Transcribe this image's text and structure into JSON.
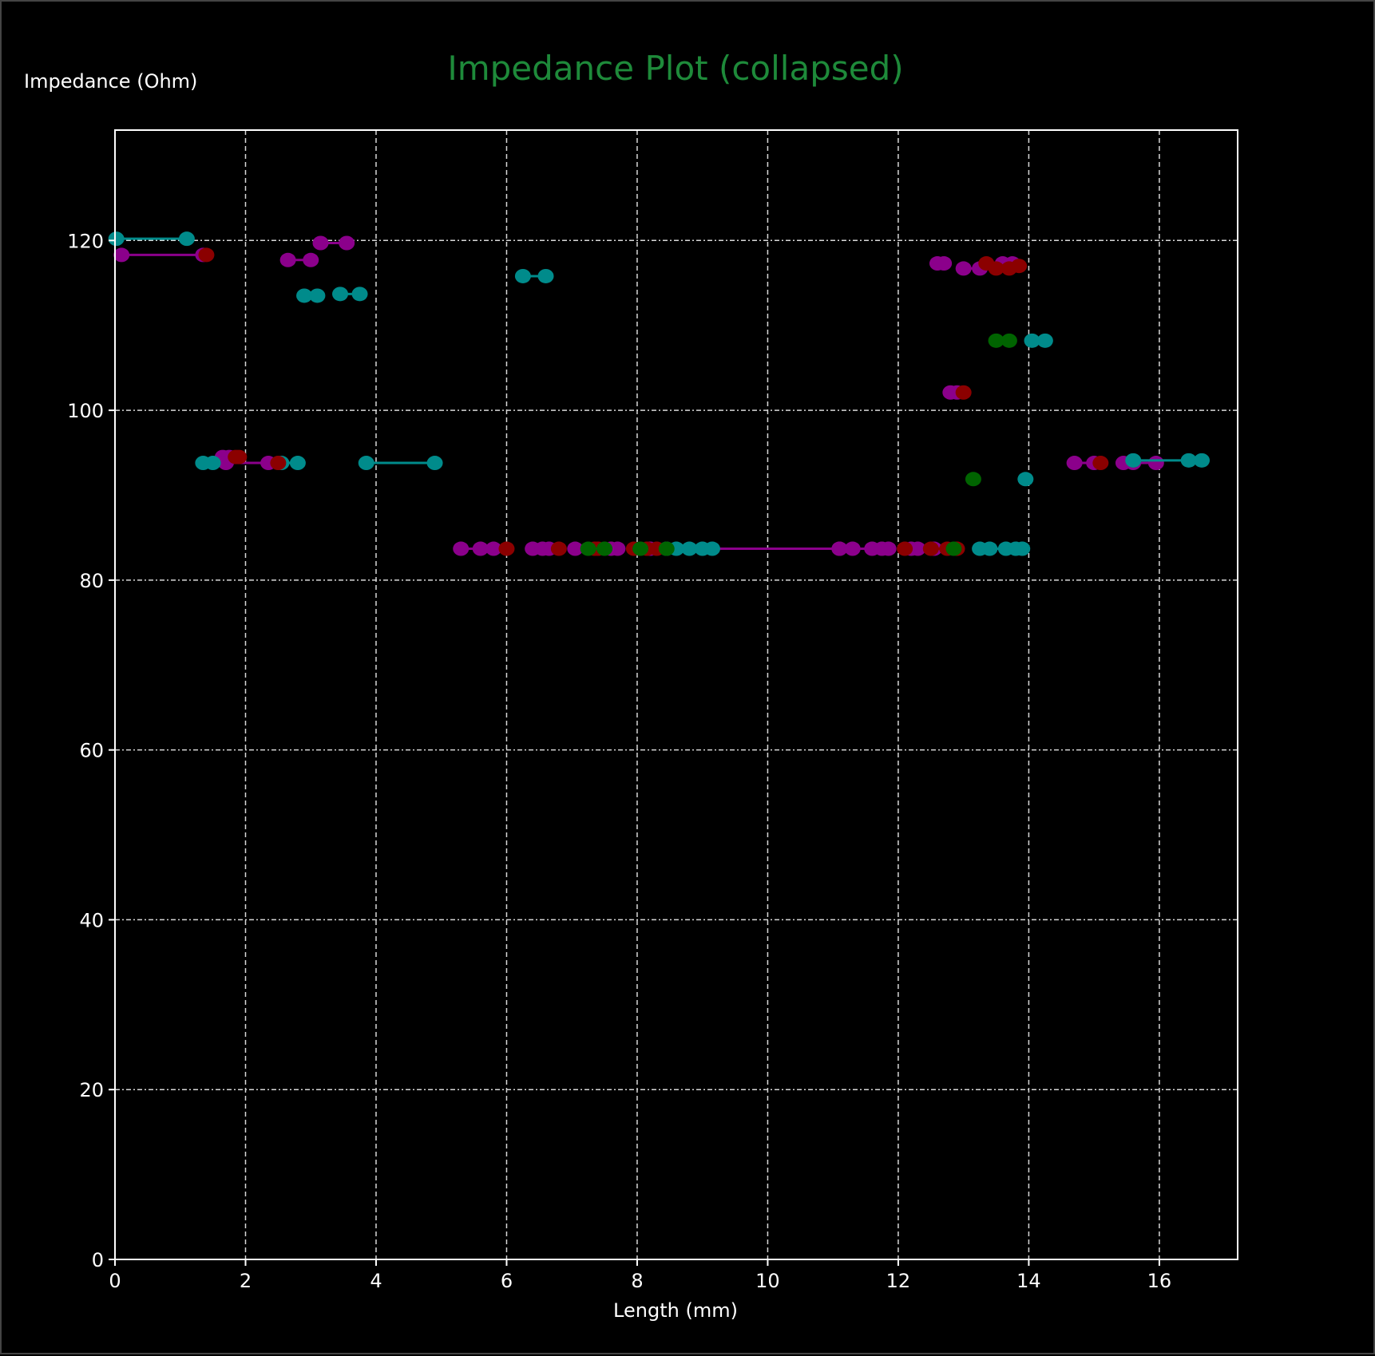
{
  "chart_data": {
    "type": "scatter",
    "title": "Impedance Plot (collapsed)",
    "xlabel": "Length (mm)",
    "ylabel": "Impedance (Ohm)",
    "xlim": [
      0,
      17.2
    ],
    "ylim": [
      0,
      133
    ],
    "xticks": [
      0,
      2,
      4,
      6,
      8,
      10,
      12,
      14,
      16
    ],
    "yticks": [
      0,
      20,
      40,
      60,
      80,
      100,
      120
    ],
    "grid": true,
    "colors": {
      "magenta": "#8b008b",
      "teal": "#008b8b",
      "red": "#8b0000",
      "green": "#006400",
      "title": "#1e8a3a",
      "background": "#000000",
      "axes": "#ffffff"
    },
    "series": [
      {
        "color": "magenta",
        "segments": [
          [
            [
              0.1,
              118.3
            ],
            [
              1.35,
              118.3
            ]
          ],
          [
            [
              2.65,
              117.7
            ],
            [
              3.0,
              117.7
            ]
          ],
          [
            [
              3.15,
              119.7
            ],
            [
              3.55,
              119.7
            ]
          ],
          [
            [
              1.65,
              94.5
            ],
            [
              1.75,
              94.5
            ]
          ],
          [
            [
              1.7,
              93.8
            ],
            [
              2.35,
              93.8
            ]
          ],
          [
            [
              5.3,
              83.7
            ],
            [
              5.6,
              83.7
            ],
            [
              5.8,
              83.7
            ]
          ],
          [
            [
              6.4,
              83.7
            ],
            [
              6.55,
              83.7
            ],
            [
              6.65,
              83.7
            ]
          ],
          [
            [
              7.05,
              83.7
            ],
            [
              7.6,
              83.7
            ],
            [
              7.7,
              83.7
            ]
          ],
          [
            [
              8.2,
              83.7
            ],
            [
              11.1,
              83.7
            ]
          ],
          [
            [
              11.1,
              83.7
            ],
            [
              11.3,
              83.7
            ],
            [
              11.6,
              83.7
            ],
            [
              11.75,
              83.7
            ],
            [
              11.85,
              83.7
            ]
          ],
          [
            [
              12.2,
              83.7
            ],
            [
              12.3,
              83.7
            ],
            [
              12.55,
              83.7
            ]
          ],
          [
            [
              12.6,
              117.3
            ],
            [
              12.7,
              117.3
            ]
          ],
          [
            [
              13.0,
              116.7
            ],
            [
              13.25,
              116.7
            ]
          ],
          [
            [
              13.6,
              117.3
            ],
            [
              13.75,
              117.3
            ]
          ],
          [
            [
              12.8,
              102.1
            ],
            [
              12.9,
              102.1
            ]
          ],
          [
            [
              14.7,
              93.8
            ],
            [
              15.0,
              93.8
            ]
          ],
          [
            [
              15.45,
              93.8
            ],
            [
              15.6,
              93.8
            ],
            [
              15.95,
              93.8
            ]
          ]
        ]
      },
      {
        "color": "teal",
        "segments": [
          [
            [
              0.02,
              120.2
            ],
            [
              1.1,
              120.2
            ]
          ],
          [
            [
              2.9,
              113.5
            ],
            [
              3.1,
              113.5
            ]
          ],
          [
            [
              3.45,
              113.7
            ],
            [
              3.75,
              113.7
            ]
          ],
          [
            [
              6.25,
              115.8
            ],
            [
              6.6,
              115.8
            ]
          ],
          [
            [
              1.35,
              93.8
            ],
            [
              1.5,
              93.8
            ]
          ],
          [
            [
              2.55,
              93.8
            ],
            [
              2.8,
              93.8
            ]
          ],
          [
            [
              3.85,
              93.8
            ],
            [
              4.9,
              93.8
            ]
          ],
          [
            [
              8.45,
              83.7
            ],
            [
              8.6,
              83.7
            ],
            [
              8.8,
              83.7
            ],
            [
              9.0,
              83.7
            ],
            [
              9.15,
              83.7
            ]
          ],
          [
            [
              13.25,
              83.7
            ],
            [
              13.4,
              83.7
            ],
            [
              13.65,
              83.7
            ],
            [
              13.8,
              83.7
            ],
            [
              13.9,
              83.7
            ]
          ],
          [
            [
              14.05,
              108.2
            ],
            [
              14.25,
              108.2
            ]
          ],
          [
            [
              13.95,
              91.9
            ]
          ],
          [
            [
              15.6,
              94.1
            ],
            [
              16.45,
              94.1
            ],
            [
              16.65,
              94.1
            ]
          ]
        ]
      },
      {
        "color": "red",
        "segments": [
          [
            [
              1.4,
              118.3
            ]
          ],
          [
            [
              1.85,
              94.5
            ],
            [
              1.9,
              94.5
            ]
          ],
          [
            [
              2.5,
              93.8
            ]
          ],
          [
            [
              6.0,
              83.7
            ]
          ],
          [
            [
              6.8,
              83.7
            ]
          ],
          [
            [
              7.35,
              83.7
            ],
            [
              7.4,
              83.7
            ]
          ],
          [
            [
              7.95,
              83.7
            ],
            [
              8.15,
              83.7
            ],
            [
              8.3,
              83.7
            ]
          ],
          [
            [
              12.1,
              83.7
            ]
          ],
          [
            [
              12.5,
              83.7
            ],
            [
              12.75,
              83.7
            ]
          ],
          [
            [
              12.9,
              83.7
            ]
          ],
          [
            [
              13.0,
              102.1
            ]
          ],
          [
            [
              13.35,
              117.3
            ],
            [
              13.5,
              116.7
            ],
            [
              13.7,
              116.7
            ],
            [
              13.85,
              117.0
            ]
          ],
          [
            [
              15.1,
              93.8
            ]
          ]
        ]
      },
      {
        "color": "green",
        "segments": [
          [
            [
              7.25,
              83.7
            ],
            [
              7.5,
              83.7
            ]
          ],
          [
            [
              8.05,
              83.7
            ]
          ],
          [
            [
              8.45,
              83.7
            ]
          ],
          [
            [
              12.85,
              83.7
            ]
          ],
          [
            [
              13.5,
              108.2
            ],
            [
              13.7,
              108.2
            ]
          ],
          [
            [
              13.15,
              91.9
            ]
          ]
        ]
      }
    ]
  }
}
